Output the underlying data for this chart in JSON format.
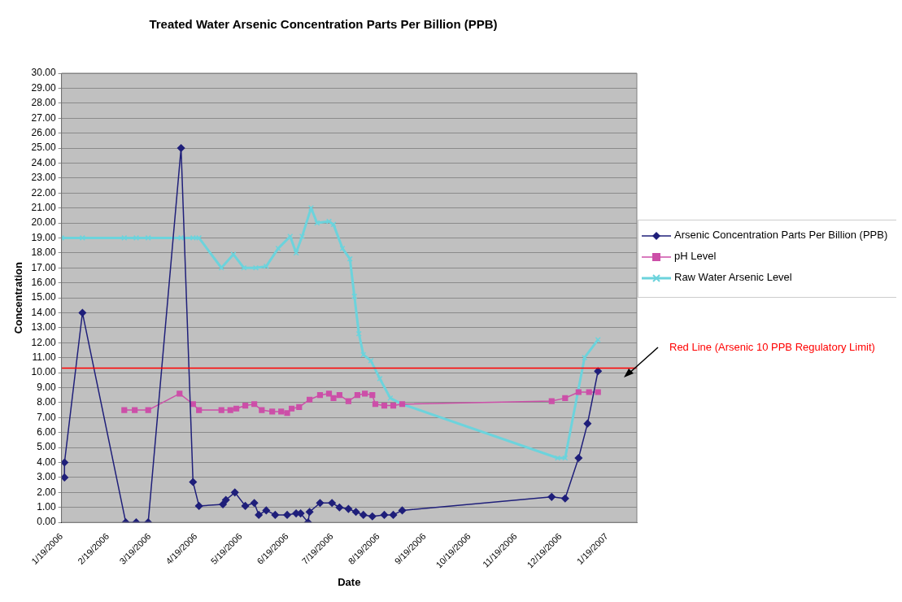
{
  "chart_data": {
    "type": "line",
    "title": "Treated Water Arsenic Concentration Parts Per Billion (PPB)",
    "xlabel": "Date",
    "ylabel": "Concentration",
    "xlim": [
      "2006-01-19",
      "2007-02-08"
    ],
    "xticks": [
      {
        "value": "2006-01-19",
        "label": "1/19/2006"
      },
      {
        "value": "2006-02-19",
        "label": "2/19/2006"
      },
      {
        "value": "2006-03-19",
        "label": "3/19/2006"
      },
      {
        "value": "2006-04-19",
        "label": "4/19/2006"
      },
      {
        "value": "2006-05-19",
        "label": "5/19/2006"
      },
      {
        "value": "2006-06-19",
        "label": "6/19/2006"
      },
      {
        "value": "2006-07-19",
        "label": "7/19/2006"
      },
      {
        "value": "2006-08-19",
        "label": "8/19/2006"
      },
      {
        "value": "2006-09-19",
        "label": "9/19/2006"
      },
      {
        "value": "2006-10-19",
        "label": "10/19/2006"
      },
      {
        "value": "2006-11-19",
        "label": "11/19/2006"
      },
      {
        "value": "2006-12-19",
        "label": "12/19/2006"
      },
      {
        "value": "2007-01-19",
        "label": "1/19/2007"
      }
    ],
    "ylim": [
      0,
      30
    ],
    "yticks": [
      {
        "value": 0,
        "label": "0.00"
      },
      {
        "value": 1,
        "label": "1.00"
      },
      {
        "value": 2,
        "label": "2.00"
      },
      {
        "value": 3,
        "label": "3.00"
      },
      {
        "value": 4,
        "label": "4.00"
      },
      {
        "value": 5,
        "label": "5.00"
      },
      {
        "value": 6,
        "label": "6.00"
      },
      {
        "value": 7,
        "label": "7.00"
      },
      {
        "value": 8,
        "label": "8.00"
      },
      {
        "value": 9,
        "label": "9.00"
      },
      {
        "value": 10,
        "label": "10.00"
      },
      {
        "value": 11,
        "label": "11.00"
      },
      {
        "value": 12,
        "label": "12.00"
      },
      {
        "value": 13,
        "label": "13.00"
      },
      {
        "value": 14,
        "label": "14.00"
      },
      {
        "value": 15,
        "label": "15.00"
      },
      {
        "value": 16,
        "label": "16.00"
      },
      {
        "value": 17,
        "label": "17.00"
      },
      {
        "value": 18,
        "label": "18.00"
      },
      {
        "value": 19,
        "label": "19.00"
      },
      {
        "value": 20,
        "label": "20.00"
      },
      {
        "value": 21,
        "label": "21.00"
      },
      {
        "value": 22,
        "label": "22.00"
      },
      {
        "value": 23,
        "label": "23.00"
      },
      {
        "value": 24,
        "label": "24.00"
      },
      {
        "value": 25,
        "label": "25.00"
      },
      {
        "value": 26,
        "label": "26.00"
      },
      {
        "value": 27,
        "label": "27.00"
      },
      {
        "value": 28,
        "label": "28.00"
      },
      {
        "value": 29,
        "label": "29.00"
      },
      {
        "value": 30,
        "label": "30.00"
      }
    ],
    "grid": "y",
    "legend": "right",
    "line_style": "solid",
    "series": [
      {
        "name": "Arsenic Concentration Parts Per Billion (PPB)",
        "color": "#1f1f7a",
        "marker": "diamond",
        "x": [
          "2006-01-21",
          "2006-01-21",
          "2006-02-02",
          "2006-03-03",
          "2006-03-10",
          "2006-03-18",
          "2006-04-09",
          "2006-04-17",
          "2006-04-21",
          "2006-05-07",
          "2006-05-09",
          "2006-05-15",
          "2006-05-22",
          "2006-05-28",
          "2006-05-31",
          "2006-06-05",
          "2006-06-11",
          "2006-06-19",
          "2006-06-25",
          "2006-06-28",
          "2006-07-03",
          "2006-07-04",
          "2006-07-11",
          "2006-07-19",
          "2006-07-24",
          "2006-07-30",
          "2006-08-04",
          "2006-08-09",
          "2006-08-15",
          "2006-08-23",
          "2006-08-29",
          "2006-09-04",
          "2006-12-13",
          "2006-12-22",
          "2006-12-31",
          "2007-01-06",
          "2007-01-13"
        ],
        "values": [
          3,
          4,
          14,
          0,
          0,
          0,
          25,
          2.7,
          1.1,
          1.2,
          1.5,
          2,
          1.1,
          1.3,
          0.5,
          0.8,
          0.5,
          0.5,
          0.6,
          0.6,
          0,
          0.7,
          1.3,
          1.3,
          1,
          0.9,
          0.7,
          0.5,
          0.4,
          0.5,
          0.5,
          0.8,
          1.7,
          1.6,
          4.3,
          6.6,
          10.1
        ]
      },
      {
        "name": "pH Level",
        "color": "#cc4fa8",
        "marker": "square",
        "x": [
          "2006-03-02",
          "2006-03-09",
          "2006-03-18",
          "2006-04-08",
          "2006-04-17",
          "2006-04-21",
          "2006-05-06",
          "2006-05-12",
          "2006-05-16",
          "2006-05-22",
          "2006-05-28",
          "2006-06-02",
          "2006-06-09",
          "2006-06-15",
          "2006-06-19",
          "2006-06-22",
          "2006-06-27",
          "2006-07-04",
          "2006-07-11",
          "2006-07-17",
          "2006-07-20",
          "2006-07-24",
          "2006-07-30",
          "2006-08-05",
          "2006-08-10",
          "2006-08-15",
          "2006-08-17",
          "2006-08-23",
          "2006-08-29",
          "2006-09-04",
          "2006-12-13",
          "2006-12-22",
          "2006-12-31",
          "2007-01-07",
          "2007-01-13"
        ],
        "values": [
          7.5,
          7.5,
          7.5,
          8.6,
          7.9,
          7.5,
          7.5,
          7.5,
          7.6,
          7.8,
          7.9,
          7.5,
          7.4,
          7.4,
          7.3,
          7.6,
          7.7,
          8.2,
          8.5,
          8.6,
          8.3,
          8.5,
          8.1,
          8.5,
          8.6,
          8.5,
          7.9,
          7.8,
          7.8,
          7.9,
          8.1,
          8.3,
          8.7,
          8.7,
          8.7
        ]
      },
      {
        "name": "Raw Water Arsenic Level",
        "color": "#6cd3dc",
        "marker": "cross",
        "x": [
          "2006-01-19",
          "2006-02-02",
          "2006-03-02",
          "2006-03-10",
          "2006-03-18",
          "2006-04-09",
          "2006-04-17",
          "2006-04-21",
          "2006-05-06",
          "2006-05-14",
          "2006-05-21",
          "2006-05-29",
          "2006-06-05",
          "2006-06-13",
          "2006-06-21",
          "2006-06-25",
          "2006-06-29",
          "2006-07-05",
          "2006-07-09",
          "2006-07-17",
          "2006-07-20",
          "2006-07-26",
          "2006-07-31",
          "2006-08-03",
          "2006-08-06",
          "2006-08-09",
          "2006-08-14",
          "2006-08-20",
          "2006-08-27",
          "2006-09-04",
          "2006-12-17",
          "2006-12-22",
          "2007-01-04",
          "2007-01-13"
        ],
        "values": [
          19,
          19,
          19,
          19,
          19,
          19,
          19,
          19,
          17,
          17.9,
          17,
          17,
          17.1,
          18.3,
          19.1,
          18,
          19.1,
          21,
          20,
          20.1,
          19.9,
          18.3,
          17.6,
          15.1,
          12.6,
          11.2,
          10.8,
          9.6,
          8.3,
          7.9,
          4.3,
          4.3,
          11,
          12.2
        ]
      }
    ],
    "ref_lines": [
      {
        "axis": "y",
        "value": 10.3,
        "label": "Red Line (Arsenic 10 PPB Regulatory Limit)",
        "color": "#ff0000"
      }
    ]
  }
}
